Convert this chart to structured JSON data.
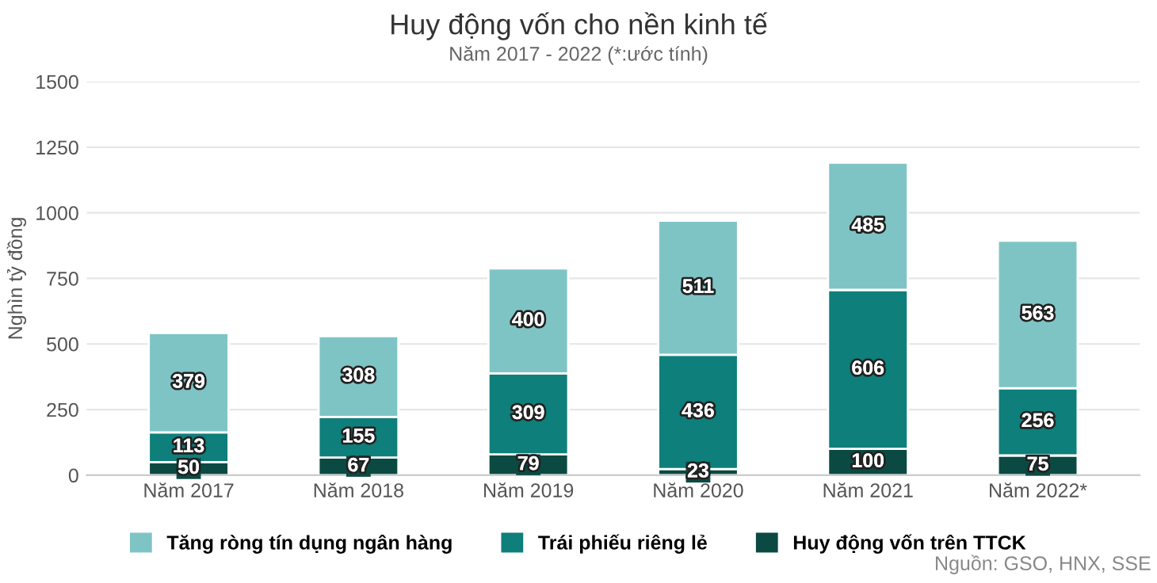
{
  "chart_data": {
    "type": "bar",
    "title": "Huy động vốn cho nền kinh tế",
    "subtitle": "Năm 2017 - 2022 (*:ước tính)",
    "ylabel": "Nghìn tỷ đồng",
    "categories": [
      "Năm 2017",
      "Năm 2018",
      "Năm 2019",
      "Năm 2020",
      "Năm 2021",
      "Năm 2022*"
    ],
    "stacked": true,
    "series": [
      {
        "name": "Huy động vốn trên TTCK",
        "color": "#0b4a42",
        "values": [
          50,
          67,
          79,
          23,
          100,
          75
        ]
      },
      {
        "name": "Trái phiếu riêng lẻ",
        "color": "#0e7f7b",
        "values": [
          113,
          155,
          309,
          436,
          606,
          256
        ]
      },
      {
        "name": "Tăng ròng tín dụng ngân hàng",
        "color": "#7fc4c5",
        "values": [
          379,
          308,
          400,
          511,
          485,
          563
        ]
      }
    ],
    "ylim": [
      0,
      1500
    ],
    "yticks": [
      0,
      250,
      500,
      750,
      1000,
      1250,
      1500
    ],
    "grid": "y",
    "legend": "bottom",
    "data_labels": true,
    "annotations": [
      "Nguồn: GSO, HNX, SSE"
    ]
  }
}
